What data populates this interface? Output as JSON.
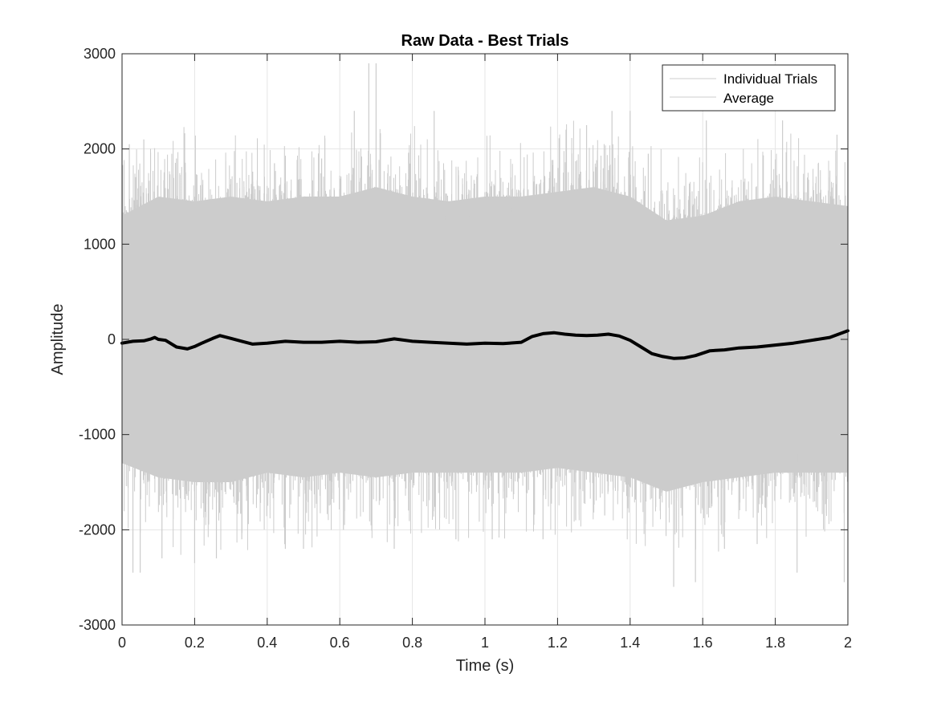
{
  "chart_data": {
    "type": "line",
    "title": "Raw Data - Best Trials",
    "xlabel": "Time (s)",
    "ylabel": "Amplitude",
    "xlim": [
      0,
      2
    ],
    "ylim": [
      -3000,
      3000
    ],
    "x_ticks": [
      "0",
      "0.2",
      "0.4",
      "0.6",
      "0.8",
      "1",
      "1.2",
      "1.4",
      "1.6",
      "1.8",
      "2"
    ],
    "y_ticks": [
      "-3000",
      "-2000",
      "-1000",
      "0",
      "1000",
      "2000",
      "3000"
    ],
    "grid": true,
    "legend_position": "top-right",
    "legend": [
      "Individual Trials",
      "Average"
    ],
    "colors": {
      "trials": "#cccccc",
      "average": "#000000",
      "grid": "#e5e5e5",
      "axis": "#262626"
    },
    "series": [
      {
        "name": "Individual Trials",
        "description_band": "dense overlaid noisy trials",
        "envelope_x": [
          0,
          0.1,
          0.2,
          0.3,
          0.4,
          0.5,
          0.6,
          0.7,
          0.8,
          0.9,
          1.0,
          1.1,
          1.2,
          1.3,
          1.4,
          1.5,
          1.6,
          1.7,
          1.8,
          1.9,
          2.0
        ],
        "envelope_upper": [
          1300,
          1500,
          1450,
          1500,
          1450,
          1500,
          1500,
          1600,
          1500,
          1450,
          1500,
          1500,
          1550,
          1600,
          1500,
          1250,
          1300,
          1450,
          1500,
          1450,
          1400
        ],
        "envelope_lower": [
          -1300,
          -1450,
          -1500,
          -1500,
          -1400,
          -1450,
          -1400,
          -1450,
          -1400,
          -1400,
          -1400,
          -1400,
          -1350,
          -1400,
          -1450,
          -1600,
          -1500,
          -1450,
          -1400,
          -1400,
          -1400
        ],
        "peak_x": [
          0.02,
          0.03,
          0.06,
          0.15,
          0.42,
          0.45,
          0.55,
          0.64,
          0.68,
          0.7,
          0.86,
          1.28,
          1.35,
          1.4,
          1.45,
          1.61,
          1.82,
          1.97
        ],
        "peak_y": [
          2050,
          -2450,
          2100,
          1900,
          1850,
          -2200,
          1900,
          2400,
          2900,
          2900,
          2400,
          2250,
          2400,
          2400,
          1950,
          2300,
          2300,
          2150
        ],
        "trough_x": [
          0.05,
          0.11,
          0.2,
          0.26,
          0.33,
          0.5,
          0.61,
          0.75,
          0.92,
          1.02,
          1.16,
          1.25,
          1.33,
          1.52,
          1.58,
          1.66,
          1.75,
          1.86,
          1.99
        ],
        "trough_y": [
          -2450,
          -2300,
          -2350,
          -2300,
          -2100,
          -2200,
          -2000,
          -2200,
          -2100,
          -2100,
          -2100,
          -1900,
          -1850,
          -2600,
          -2550,
          -2200,
          -2150,
          -2450,
          -2550
        ]
      },
      {
        "name": "Average",
        "x": [
          0,
          0.03,
          0.06,
          0.08,
          0.09,
          0.1,
          0.12,
          0.15,
          0.18,
          0.2,
          0.22,
          0.25,
          0.27,
          0.3,
          0.33,
          0.36,
          0.4,
          0.45,
          0.5,
          0.55,
          0.6,
          0.65,
          0.7,
          0.75,
          0.8,
          0.85,
          0.9,
          0.95,
          1.0,
          1.05,
          1.1,
          1.13,
          1.16,
          1.19,
          1.22,
          1.25,
          1.28,
          1.31,
          1.34,
          1.37,
          1.4,
          1.43,
          1.46,
          1.49,
          1.52,
          1.55,
          1.58,
          1.62,
          1.66,
          1.7,
          1.75,
          1.8,
          1.85,
          1.9,
          1.95,
          2.0
        ],
        "values": [
          -40,
          -20,
          -15,
          5,
          20,
          0,
          -10,
          -80,
          -100,
          -75,
          -40,
          10,
          40,
          10,
          -20,
          -50,
          -40,
          -20,
          -30,
          -30,
          -20,
          -30,
          -25,
          5,
          -20,
          -30,
          -40,
          -50,
          -40,
          -45,
          -30,
          30,
          60,
          70,
          55,
          45,
          40,
          45,
          55,
          35,
          -10,
          -80,
          -150,
          -180,
          -200,
          -195,
          -170,
          -120,
          -110,
          -90,
          -80,
          -60,
          -40,
          -10,
          20,
          90
        ]
      }
    ]
  }
}
